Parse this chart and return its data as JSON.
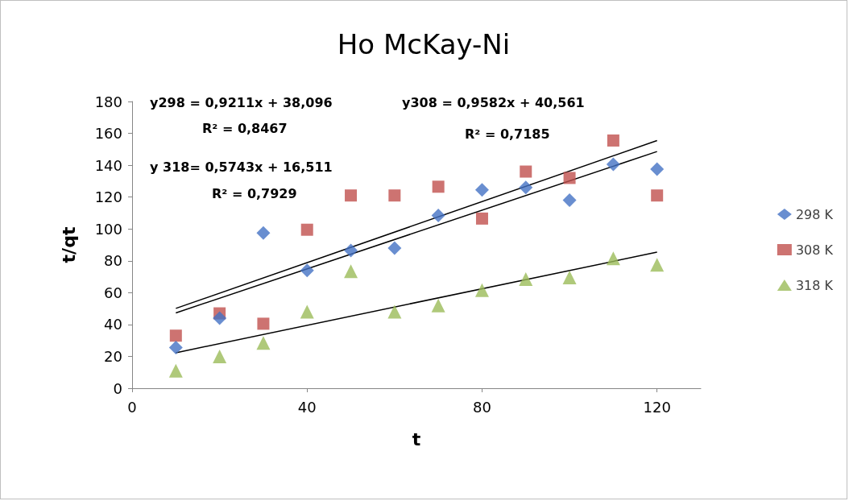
{
  "chart_data": {
    "type": "scatter",
    "title": "Ho McKay-Ni",
    "xlabel": "t",
    "ylabel": "t/qt",
    "xlim": [
      0,
      130
    ],
    "xticks": [
      0,
      40,
      80,
      120
    ],
    "ylim": [
      0,
      180
    ],
    "yticks": [
      0,
      20,
      40,
      60,
      80,
      100,
      120,
      140,
      160,
      180
    ],
    "grid": false,
    "legend": "right",
    "annotations": [
      "y298 = 0,9211x + 38,096",
      "R² = 0,8467",
      "y308 = 0,9582x + 40,561",
      "R² = 0,7185",
      "y 318= 0,5743x + 16,511",
      "R² = 0,7929"
    ],
    "series": [
      {
        "name": "298 K",
        "color": "#4472c4",
        "marker": "diamond",
        "x": [
          10,
          20,
          30,
          40,
          50,
          60,
          70,
          80,
          90,
          100,
          110,
          120
        ],
        "values": [
          25.5,
          44,
          97.5,
          74,
          86.5,
          88,
          108.5,
          124.5,
          126,
          118,
          140.5,
          137.5
        ]
      },
      {
        "name": "308 K",
        "color": "#c0504d",
        "marker": "square",
        "x": [
          10,
          20,
          30,
          40,
          50,
          60,
          70,
          80,
          90,
          100,
          110,
          120
        ],
        "values": [
          33,
          47,
          40.5,
          99.5,
          121,
          121,
          126.5,
          106.5,
          136,
          132,
          155.5,
          121
        ]
      },
      {
        "name": "318 K",
        "color": "#9bbb59",
        "marker": "triangle",
        "x": [
          10,
          20,
          30,
          40,
          50,
          60,
          70,
          80,
          90,
          100,
          110,
          120
        ],
        "values": [
          11,
          20,
          28.5,
          48,
          73.5,
          48,
          52,
          61.5,
          68.5,
          69.5,
          81.5,
          77.5
        ]
      },
      {
        "type": "line",
        "color": "#000000",
        "marker": "none",
        "x": [
          10,
          120
        ],
        "values": [
          47.3,
          148.6
        ]
      },
      {
        "type": "line",
        "color": "#000000",
        "marker": "none",
        "x": [
          10,
          120
        ],
        "values": [
          50.1,
          155.5
        ]
      },
      {
        "type": "line",
        "color": "#000000",
        "marker": "none",
        "x": [
          10,
          120
        ],
        "values": [
          22.3,
          85.4
        ]
      }
    ]
  }
}
